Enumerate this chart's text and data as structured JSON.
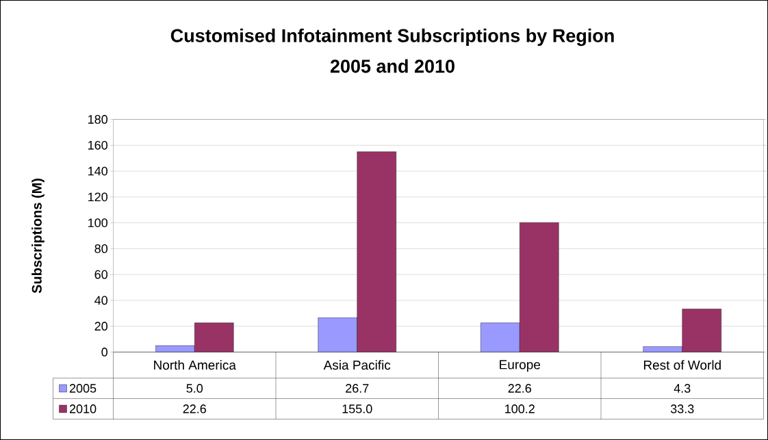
{
  "chart_data": {
    "type": "bar",
    "title": "Customised Infotainment  Subscriptions by Region",
    "subtitle": "2005 and 2010",
    "ylabel": "Subscriptions (M)",
    "categories": [
      "North America",
      "Asia Pacific",
      "Europe",
      "Rest of World"
    ],
    "series": [
      {
        "name": "2005",
        "color": "#9999ff",
        "values": [
          5.0,
          26.7,
          22.6,
          4.3
        ],
        "value_labels": [
          "5.0",
          "26.7",
          "22.6",
          "4.3"
        ]
      },
      {
        "name": "2010",
        "color": "#993366",
        "values": [
          22.6,
          155.0,
          100.2,
          33.3
        ],
        "value_labels": [
          "22.6",
          "155.0",
          "100.2",
          "33.3"
        ]
      }
    ],
    "ylim": [
      0,
      180
    ],
    "yticks": [
      0,
      20,
      40,
      60,
      80,
      100,
      120,
      140,
      160,
      180
    ],
    "grid": "y",
    "legend": "bottom left"
  }
}
